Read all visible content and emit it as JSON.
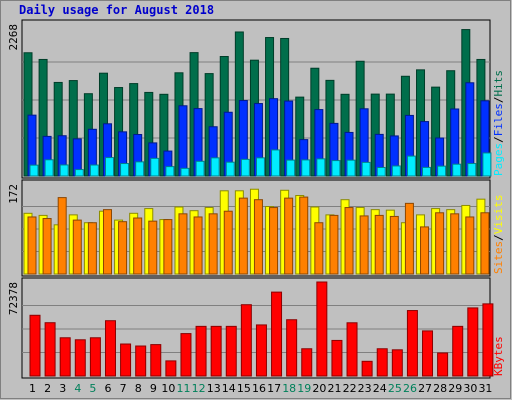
{
  "chart_data": {
    "type": "bar",
    "title": "Daily usage for August 2018",
    "days": [
      "1",
      "2",
      "3",
      "4",
      "5",
      "6",
      "7",
      "8",
      "9",
      "10",
      "11",
      "12",
      "13",
      "14",
      "15",
      "16",
      "17",
      "18",
      "19",
      "20",
      "21",
      "22",
      "23",
      "24",
      "25",
      "26",
      "27",
      "28",
      "29",
      "30",
      "31"
    ],
    "weekend_days": [
      "4",
      "5",
      "11",
      "12",
      "18",
      "19",
      "25",
      "26"
    ],
    "panels": [
      {
        "id": "hits-files-pages",
        "ymax_label": "2268",
        "ymax": 2268,
        "side_labels": [
          "Pages",
          "/",
          "Files",
          "/",
          "Hits"
        ],
        "series": [
          {
            "name": "Hits",
            "color": "#006e4b",
            "values": [
              1839,
              1739,
              1396,
              1424,
              1228,
              1534,
              1320,
              1379,
              1247,
              1219,
              1540,
              1841,
              1528,
              1783,
              2149,
              1728,
              2066,
              2052,
              1177,
              1608,
              1427,
              1219,
              1712,
              1222,
              1222,
              1488,
              1584,
              1326,
              1571,
              2185,
              1739
            ]
          },
          {
            "name": "Files",
            "color": "#0030ff",
            "values": [
              908,
              591,
              601,
              554,
              697,
              779,
              659,
              619,
              494,
              372,
              1048,
              1006,
              735,
              951,
              1126,
              1081,
              1154,
              1118,
              543,
              991,
              785,
              650,
              1003,
              621,
              598,
              904,
              812,
              567,
              1000,
              1391,
              1122
            ]
          },
          {
            "name": "Pages",
            "color": "#00ecff",
            "values": [
              162,
              242,
              165,
              96,
              164,
              275,
              186,
              211,
              263,
              140,
              114,
              219,
              271,
              206,
              248,
              271,
              389,
              237,
              240,
              256,
              230,
              236,
              203,
              127,
              150,
              297,
              128,
              147,
              176,
              186,
              344
            ]
          }
        ]
      },
      {
        "id": "sites-visits",
        "ymax_label": "172",
        "ymax": 172,
        "side_labels": [
          "Sites",
          "/",
          "Visits"
        ],
        "series": [
          {
            "name": "Visits",
            "color": "#ffff00",
            "values": [
              116,
              112,
              94,
              113,
              98,
              120,
              103,
              116,
              125,
              104,
              128,
              121,
              127,
              159,
              159,
              162,
              129,
              160,
              150,
              128,
              113,
              142,
              127,
              123,
              122,
              98,
              113,
              125,
              123,
              131,
              143
            ]
          },
          {
            "name": "Sites",
            "color": "#ff8000",
            "values": [
              109,
              106,
              146,
              103,
              98,
              123,
              100,
              107,
              101,
              104,
              115,
              109,
              115,
              120,
              145,
              142,
              127,
              145,
              147,
              98,
              112,
              127,
              111,
              112,
              110,
              135,
              90,
              117,
              115,
              109,
              117
            ]
          }
        ]
      },
      {
        "id": "kbytes",
        "ymax_label": "72378",
        "ymax": 72378,
        "side_labels": [
          "KBytes"
        ],
        "series": [
          {
            "name": "KBytes",
            "color": "#ff0000",
            "values": [
              46750,
              41040,
              29440,
              27890,
              29440,
              42580,
              24630,
              23090,
              24180,
              11640,
              32650,
              38220,
              38220,
              38220,
              54900,
              39330,
              64590,
              43330,
              20980,
              72378,
              27390,
              40980,
              11310,
              20980,
              20170,
              50400,
              34720,
              17720,
              38220,
              52430,
              55550
            ]
          }
        ]
      }
    ]
  }
}
